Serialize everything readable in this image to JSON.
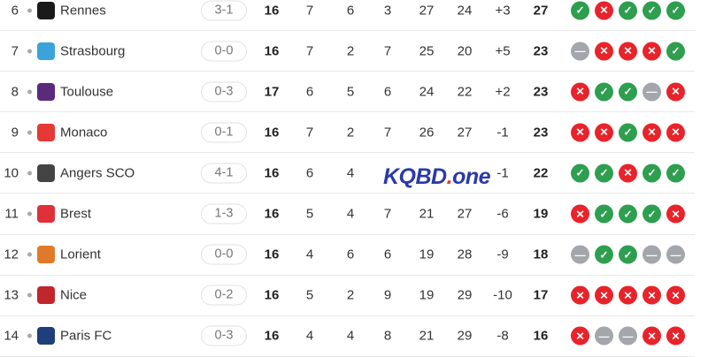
{
  "colors": {
    "win": "#2e9e4f",
    "loss": "#e8232a",
    "draw": "#a3a6ab"
  },
  "rows": [
    {
      "rank": "6",
      "team": "Rennes",
      "logo_color": "#1a1a1a",
      "last": "3-1",
      "p": "16",
      "w": "7",
      "d": "6",
      "l": "3",
      "gf": "27",
      "ga": "24",
      "gd": "+3",
      "pts": "27",
      "form": [
        "W",
        "L",
        "W",
        "W",
        "W"
      ]
    },
    {
      "rank": "7",
      "team": "Strasbourg",
      "logo_color": "#3aa3dc",
      "last": "0-0",
      "p": "16",
      "w": "7",
      "d": "2",
      "l": "7",
      "gf": "25",
      "ga": "20",
      "gd": "+5",
      "pts": "23",
      "form": [
        "D",
        "L",
        "L",
        "L",
        "W"
      ]
    },
    {
      "rank": "8",
      "team": "Toulouse",
      "logo_color": "#5b2a7a",
      "last": "0-3",
      "p": "17",
      "w": "6",
      "d": "5",
      "l": "6",
      "gf": "24",
      "ga": "22",
      "gd": "+2",
      "pts": "23",
      "form": [
        "L",
        "W",
        "W",
        "D",
        "L"
      ]
    },
    {
      "rank": "9",
      "team": "Monaco",
      "logo_color": "#e53935",
      "last": "0-1",
      "p": "16",
      "w": "7",
      "d": "2",
      "l": "7",
      "gf": "26",
      "ga": "27",
      "gd": "-1",
      "pts": "23",
      "form": [
        "L",
        "L",
        "W",
        "L",
        "L"
      ]
    },
    {
      "rank": "10",
      "team": "Angers SCO",
      "logo_color": "#444444",
      "last": "4-1",
      "p": "16",
      "w": "6",
      "d": "4",
      "l": "",
      "gf": "",
      "ga": "",
      "gd": "-1",
      "pts": "22",
      "form": [
        "W",
        "W",
        "L",
        "W",
        "W"
      ]
    },
    {
      "rank": "11",
      "team": "Brest",
      "logo_color": "#e0303a",
      "last": "1-3",
      "p": "16",
      "w": "5",
      "d": "4",
      "l": "7",
      "gf": "21",
      "ga": "27",
      "gd": "-6",
      "pts": "19",
      "form": [
        "L",
        "W",
        "W",
        "W",
        "L"
      ]
    },
    {
      "rank": "12",
      "team": "Lorient",
      "logo_color": "#e07a2a",
      "last": "0-0",
      "p": "16",
      "w": "4",
      "d": "6",
      "l": "6",
      "gf": "19",
      "ga": "28",
      "gd": "-9",
      "pts": "18",
      "form": [
        "D",
        "W",
        "W",
        "D",
        "D"
      ]
    },
    {
      "rank": "13",
      "team": "Nice",
      "logo_color": "#c0272d",
      "last": "0-2",
      "p": "16",
      "w": "5",
      "d": "2",
      "l": "9",
      "gf": "19",
      "ga": "29",
      "gd": "-10",
      "pts": "17",
      "form": [
        "L",
        "L",
        "L",
        "L",
        "L"
      ]
    },
    {
      "rank": "14",
      "team": "Paris FC",
      "logo_color": "#1d3f7a",
      "last": "0-3",
      "p": "16",
      "w": "4",
      "d": "4",
      "l": "8",
      "gf": "21",
      "ga": "29",
      "gd": "-8",
      "pts": "16",
      "form": [
        "L",
        "D",
        "D",
        "L",
        "L"
      ]
    }
  ],
  "watermark": {
    "main": "KQBD",
    "dot": ".",
    "tail": "one"
  }
}
